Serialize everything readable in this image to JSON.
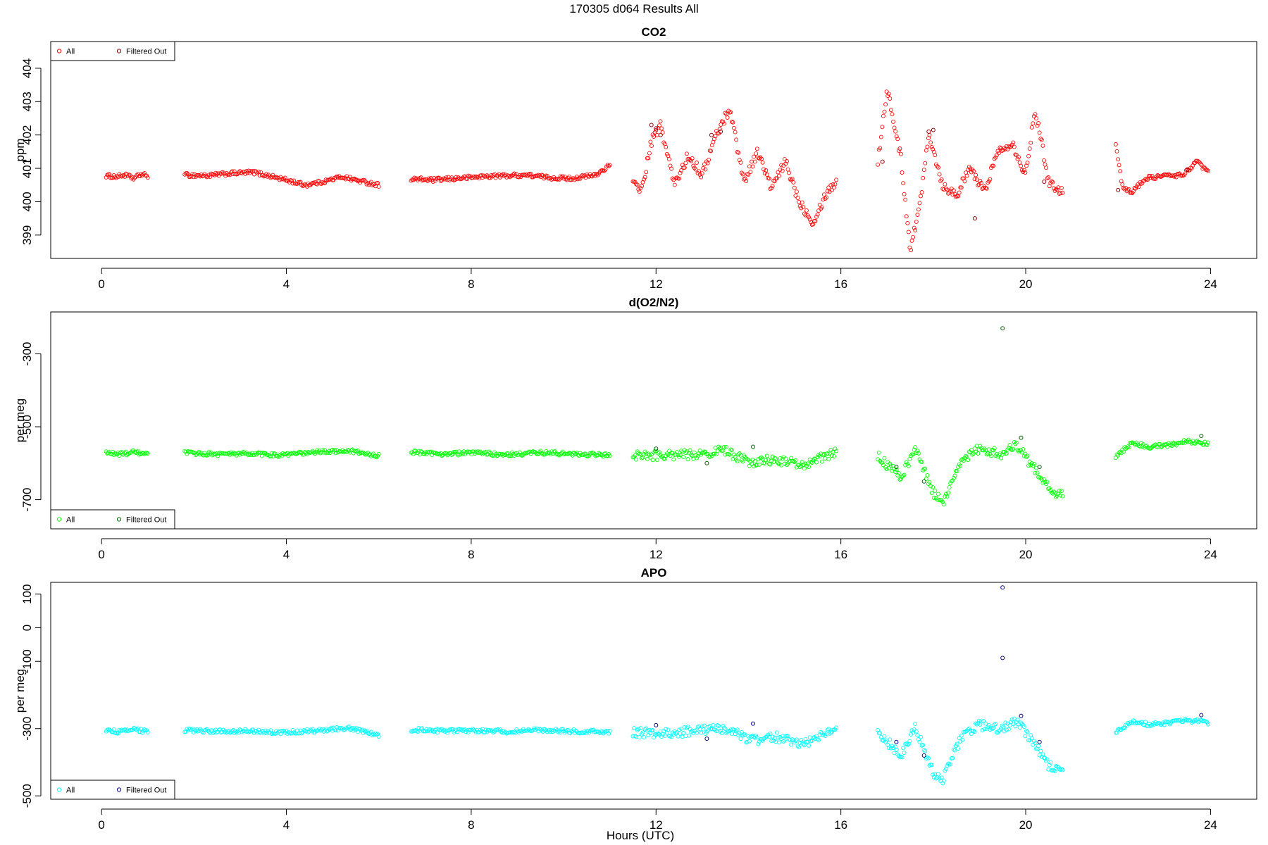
{
  "figure": {
    "title": "170305   d064   Results All",
    "xlabel": "Hours (UTC)"
  },
  "chart_data": [
    {
      "type": "scatter",
      "title": "CO2",
      "xlabel": "",
      "ylabel": "ppm",
      "xlim": [
        -1.1,
        25.0
      ],
      "ylim": [
        398.3,
        404.8
      ],
      "x_ticks": [
        0,
        4,
        8,
        12,
        16,
        20,
        24
      ],
      "y_ticks": [
        399,
        400,
        401,
        402,
        403,
        404
      ],
      "legend": {
        "position": "top-left",
        "entries": [
          "All",
          "Filtered Out"
        ]
      },
      "series": [
        {
          "name": "All",
          "color": "#ff0000",
          "segments": [
            {
              "x": [
                0.1,
                0.3,
                0.5,
                0.7,
                0.85,
                1.0
              ],
              "y": [
                400.78,
                400.75,
                400.8,
                400.7,
                400.82,
                400.78
              ]
            },
            {
              "x": [
                1.8,
                2.3,
                2.8,
                3.3,
                3.7,
                4.0,
                4.4,
                4.8,
                5.2,
                5.6,
                6.0
              ],
              "y": [
                400.8,
                400.78,
                400.85,
                400.88,
                400.75,
                400.65,
                400.5,
                400.6,
                400.75,
                400.62,
                400.5
              ]
            },
            {
              "x": [
                6.7,
                7.2,
                7.7,
                8.2,
                8.7,
                9.2,
                9.7,
                10.2,
                10.7,
                11.0
              ],
              "y": [
                400.68,
                400.65,
                400.7,
                400.75,
                400.78,
                400.8,
                400.72,
                400.7,
                400.8,
                401.1
              ]
            },
            {
              "x": [
                11.5,
                11.7,
                11.9,
                12.1,
                12.4,
                12.7,
                13.0,
                13.3,
                13.6,
                13.9,
                14.2,
                14.5,
                14.8,
                15.1,
                15.4,
                15.7,
                15.9
              ],
              "y": [
                400.5,
                400.4,
                401.8,
                402.3,
                400.5,
                401.4,
                400.8,
                402.0,
                402.8,
                400.6,
                401.5,
                400.4,
                401.2,
                400.0,
                399.4,
                400.3,
                400.6
              ]
            },
            {
              "x": [
                16.8,
                17.0,
                17.3,
                17.5,
                17.7,
                17.9,
                18.2,
                18.5,
                18.8,
                19.1,
                19.4,
                19.7,
                20.0,
                20.2,
                20.5,
                20.8
              ],
              "y": [
                401.2,
                403.4,
                401.3,
                398.6,
                399.8,
                402.1,
                400.5,
                400.2,
                401.0,
                400.3,
                401.5,
                401.8,
                400.8,
                402.8,
                400.6,
                400.3
              ]
            },
            {
              "x": [
                21.95,
                22.1,
                22.3,
                22.6,
                23.0,
                23.4,
                23.7,
                23.95
              ],
              "y": [
                401.7,
                400.4,
                400.3,
                400.7,
                400.78,
                400.8,
                401.2,
                400.9
              ]
            }
          ]
        },
        {
          "name": "Filtered Out",
          "color": "#8b0000",
          "points": [
            {
              "x": 11.9,
              "y": 402.3
            },
            {
              "x": 12.0,
              "y": 402.2
            },
            {
              "x": 12.1,
              "y": 402.0
            },
            {
              "x": 13.2,
              "y": 402.0
            },
            {
              "x": 13.4,
              "y": 402.1
            },
            {
              "x": 16.9,
              "y": 401.2
            },
            {
              "x": 17.9,
              "y": 402.1
            },
            {
              "x": 18.0,
              "y": 402.15
            },
            {
              "x": 18.9,
              "y": 399.5
            },
            {
              "x": 20.4,
              "y": 400.6
            },
            {
              "x": 22.0,
              "y": 400.35
            },
            {
              "x": 23.5,
              "y": 400.95
            }
          ]
        }
      ]
    },
    {
      "type": "scatter",
      "title": "d(O2/N2)",
      "xlabel": "",
      "ylabel": "per meg",
      "xlim": [
        -1.1,
        25.0
      ],
      "ylim": [
        -780,
        -185
      ],
      "x_ticks": [
        0,
        4,
        8,
        12,
        16,
        20,
        24
      ],
      "y_ticks": [
        -700,
        -500,
        -300
      ],
      "legend": {
        "position": "bottom-left",
        "entries": [
          "All",
          "Filtered Out"
        ]
      },
      "series": [
        {
          "name": "All",
          "color": "#00ff00",
          "segments": [
            {
              "x": [
                0.1,
                0.4,
                0.7,
                1.0
              ],
              "y": [
                -572,
                -575,
                -570,
                -576
              ]
            },
            {
              "x": [
                1.8,
                2.5,
                3.2,
                3.9,
                4.6,
                5.3,
                6.0
              ],
              "y": [
                -572,
                -575,
                -574,
                -578,
                -570,
                -565,
                -580
              ]
            },
            {
              "x": [
                6.7,
                7.4,
                8.1,
                8.8,
                9.5,
                10.2,
                11.0
              ],
              "y": [
                -570,
                -574,
                -572,
                -576,
                -571,
                -575,
                -577
              ]
            },
            {
              "x": [
                11.5,
                12.2,
                12.9,
                13.5,
                14.0,
                14.6,
                15.2,
                15.9
              ],
              "y": [
                -578,
                -580,
                -574,
                -566,
                -598,
                -590,
                -605,
                -570
              ]
            },
            {
              "x": [
                16.8,
                17.3,
                17.6,
                18.0,
                18.2,
                18.6,
                19.0,
                19.5,
                19.8,
                20.1,
                20.5,
                20.8
              ],
              "y": [
                -580,
                -640,
                -560,
                -680,
                -710,
                -590,
                -560,
                -575,
                -550,
                -600,
                -670,
                -690
              ]
            },
            {
              "x": [
                21.95,
                22.3,
                22.7,
                23.1,
                23.5,
                23.95
              ],
              "y": [
                -580,
                -545,
                -555,
                -550,
                -540,
                -548
              ]
            }
          ]
        },
        {
          "name": "Filtered Out",
          "color": "#006400",
          "points": [
            {
              "x": 12.0,
              "y": -560
            },
            {
              "x": 13.1,
              "y": -600
            },
            {
              "x": 14.1,
              "y": -555
            },
            {
              "x": 17.2,
              "y": -610
            },
            {
              "x": 17.8,
              "y": -650
            },
            {
              "x": 19.5,
              "y": -230
            },
            {
              "x": 19.9,
              "y": -530
            },
            {
              "x": 20.3,
              "y": -610
            },
            {
              "x": 23.8,
              "y": -525
            }
          ]
        }
      ]
    },
    {
      "type": "scatter",
      "title": "APO",
      "xlabel": "Hours (UTC)",
      "ylabel": "per meg",
      "xlim": [
        -1.1,
        25.0
      ],
      "ylim": [
        -510,
        135
      ],
      "x_ticks": [
        0,
        4,
        8,
        12,
        16,
        20,
        24
      ],
      "y_ticks": [
        -500,
        -300,
        -100,
        0,
        100
      ],
      "legend": {
        "position": "bottom-left",
        "entries": [
          "All",
          "Filtered Out"
        ]
      },
      "series": [
        {
          "name": "All",
          "color": "#00ffff",
          "segments": [
            {
              "x": [
                0.1,
                0.4,
                0.7,
                1.0
              ],
              "y": [
                -305,
                -310,
                -303,
                -309
              ]
            },
            {
              "x": [
                1.8,
                2.5,
                3.2,
                3.9,
                4.6,
                5.3,
                6.0
              ],
              "y": [
                -305,
                -308,
                -307,
                -312,
                -306,
                -298,
                -318
              ]
            },
            {
              "x": [
                6.7,
                7.4,
                8.1,
                8.8,
                9.5,
                10.2,
                11.0
              ],
              "y": [
                -303,
                -307,
                -305,
                -309,
                -304,
                -308,
                -310
              ]
            },
            {
              "x": [
                11.5,
                12.2,
                12.9,
                13.5,
                14.0,
                14.6,
                15.2,
                15.9
              ],
              "y": [
                -312,
                -315,
                -306,
                -298,
                -335,
                -325,
                -345,
                -305
              ]
            },
            {
              "x": [
                16.8,
                17.3,
                17.6,
                18.0,
                18.2,
                18.6,
                19.0,
                19.5,
                19.8,
                20.1,
                20.5,
                20.8
              ],
              "y": [
                -310,
                -380,
                -295,
                -430,
                -455,
                -325,
                -290,
                -300,
                -280,
                -330,
                -410,
                -430
              ]
            },
            {
              "x": [
                21.95,
                22.3,
                22.7,
                23.1,
                23.5,
                23.95
              ],
              "y": [
                -310,
                -280,
                -288,
                -283,
                -275,
                -282
              ]
            }
          ]
        },
        {
          "name": "Filtered Out",
          "color": "#00008b",
          "points": [
            {
              "x": 12.0,
              "y": -290
            },
            {
              "x": 13.1,
              "y": -330
            },
            {
              "x": 14.1,
              "y": -285
            },
            {
              "x": 17.2,
              "y": -340
            },
            {
              "x": 17.8,
              "y": -380
            },
            {
              "x": 19.5,
              "y": 120
            },
            {
              "x": 19.5,
              "y": -90
            },
            {
              "x": 19.9,
              "y": -262
            },
            {
              "x": 20.3,
              "y": -340
            },
            {
              "x": 23.8,
              "y": -260
            }
          ]
        }
      ]
    }
  ]
}
